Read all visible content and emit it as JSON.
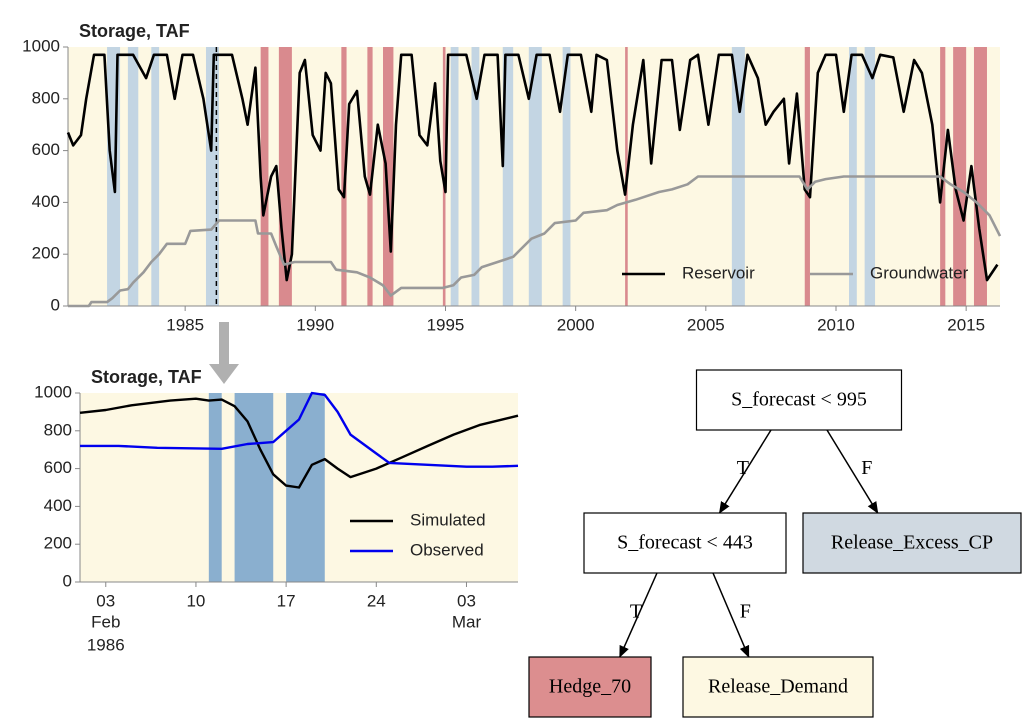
{
  "chart_data": [
    {
      "type": "line",
      "title": "Storage, TAF",
      "xlim": [
        1980.5,
        2016.3
      ],
      "xticks": [
        1985,
        1990,
        1995,
        2000,
        2005,
        2010,
        2015
      ],
      "ylim": [
        0,
        1000
      ],
      "yticks": [
        0,
        200,
        400,
        600,
        800,
        1000
      ],
      "legend": "lower right",
      "background": "#fdf8e3",
      "marker_x": 1986.2,
      "regions": [
        {
          "x": [
            1982.0,
            1982.5
          ],
          "color": "#c3d5e3"
        },
        {
          "x": [
            1982.8,
            1983.2
          ],
          "color": "#c3d5e3"
        },
        {
          "x": [
            1983.7,
            1984.0
          ],
          "color": "#c3d5e3"
        },
        {
          "x": [
            1985.8,
            1986.3
          ],
          "color": "#c3d5e3"
        },
        {
          "x": [
            1987.9,
            1988.2
          ],
          "color": "#d98a8e"
        },
        {
          "x": [
            1988.6,
            1989.1
          ],
          "color": "#d98a8e"
        },
        {
          "x": [
            1991.0,
            1991.2
          ],
          "color": "#d98a8e"
        },
        {
          "x": [
            1992.0,
            1992.2
          ],
          "color": "#d98a8e"
        },
        {
          "x": [
            1992.6,
            1993.0
          ],
          "color": "#d98a8e"
        },
        {
          "x": [
            1994.9,
            1995.0
          ],
          "color": "#d98a8e"
        },
        {
          "x": [
            1995.2,
            1995.5
          ],
          "color": "#c3d5e3"
        },
        {
          "x": [
            1996.0,
            1996.3
          ],
          "color": "#c3d5e3"
        },
        {
          "x": [
            1997.2,
            1997.6
          ],
          "color": "#c3d5e3"
        },
        {
          "x": [
            1998.2,
            1998.7
          ],
          "color": "#c3d5e3"
        },
        {
          "x": [
            1999.5,
            1999.8
          ],
          "color": "#c3d5e3"
        },
        {
          "x": [
            2001.9,
            2002.0
          ],
          "color": "#d98a8e"
        },
        {
          "x": [
            2006.0,
            2006.5
          ],
          "color": "#c3d5e3"
        },
        {
          "x": [
            2008.8,
            2009.0
          ],
          "color": "#d98a8e"
        },
        {
          "x": [
            2010.5,
            2010.8
          ],
          "color": "#c3d5e3"
        },
        {
          "x": [
            2011.1,
            2011.5
          ],
          "color": "#c3d5e3"
        },
        {
          "x": [
            2014.0,
            2014.2
          ],
          "color": "#d98a8e"
        },
        {
          "x": [
            2014.5,
            2015.0
          ],
          "color": "#d98a8e"
        },
        {
          "x": [
            2015.3,
            2015.8
          ],
          "color": "#d98a8e"
        }
      ],
      "series": [
        {
          "name": "Reservoir",
          "color": "#000000",
          "width": 2.6,
          "x": [
            1980.5,
            1980.7,
            1981.0,
            1981.2,
            1981.5,
            1981.7,
            1981.9,
            1982.1,
            1982.3,
            1982.4,
            1983.0,
            1983.5,
            1983.8,
            1984.3,
            1984.6,
            1984.9,
            1985.3,
            1985.7,
            1986.0,
            1986.1,
            1986.8,
            1987.2,
            1987.4,
            1987.7,
            1987.9,
            1988.0,
            1988.3,
            1988.5,
            1988.7,
            1988.9,
            1989.1,
            1989.4,
            1989.6,
            1989.9,
            1990.2,
            1990.4,
            1990.6,
            1990.9,
            1991.1,
            1991.3,
            1991.6,
            1991.9,
            1992.1,
            1992.4,
            1992.7,
            1992.9,
            1993.1,
            1993.3,
            1993.7,
            1994.0,
            1994.3,
            1994.6,
            1994.8,
            1995.0,
            1995.1,
            1995.8,
            1996.2,
            1996.5,
            1997.0,
            1997.2,
            1997.3,
            1997.8,
            1998.2,
            1998.5,
            1999.0,
            1999.4,
            1999.7,
            2000.2,
            2000.6,
            2000.8,
            2001.2,
            2001.6,
            2001.9,
            2002.2,
            2002.6,
            2002.9,
            2003.3,
            2003.7,
            2004.0,
            2004.4,
            2004.7,
            2005.1,
            2005.5,
            2006.0,
            2006.3,
            2006.6,
            2007.0,
            2007.3,
            2007.6,
            2008.0,
            2008.2,
            2008.5,
            2008.8,
            2009.0,
            2009.3,
            2009.6,
            2010.0,
            2010.3,
            2010.6,
            2011.0,
            2011.4,
            2011.7,
            2012.2,
            2012.6,
            2013.0,
            2013.3,
            2013.7,
            2014.0,
            2014.3,
            2014.6,
            2014.9,
            2015.2,
            2015.5,
            2015.8,
            2016.2
          ],
          "values": [
            670,
            620,
            660,
            800,
            970,
            970,
            970,
            600,
            440,
            970,
            970,
            880,
            970,
            970,
            800,
            970,
            970,
            800,
            600,
            970,
            970,
            800,
            700,
            920,
            500,
            350,
            500,
            540,
            300,
            100,
            200,
            900,
            950,
            660,
            600,
            900,
            860,
            450,
            420,
            780,
            830,
            500,
            430,
            700,
            550,
            210,
            700,
            970,
            970,
            660,
            620,
            860,
            560,
            440,
            970,
            970,
            800,
            970,
            970,
            540,
            970,
            970,
            800,
            970,
            970,
            750,
            970,
            970,
            750,
            970,
            950,
            600,
            430,
            700,
            950,
            550,
            950,
            950,
            680,
            950,
            970,
            700,
            970,
            970,
            750,
            970,
            880,
            700,
            750,
            800,
            550,
            820,
            450,
            420,
            900,
            970,
            970,
            750,
            970,
            970,
            880,
            970,
            960,
            750,
            950,
            900,
            700,
            400,
            680,
            450,
            330,
            540,
            300,
            100,
            160
          ]
        },
        {
          "name": "Groundwater",
          "color": "#999999",
          "width": 2.6,
          "x": [
            1980.5,
            1981.3,
            1981.4,
            1982.0,
            1982.2,
            1982.5,
            1982.8,
            1983.0,
            1983.4,
            1983.7,
            1984.0,
            1984.3,
            1985.0,
            1985.2,
            1986.0,
            1986.3,
            1987.7,
            1987.8,
            1988.3,
            1988.5,
            1988.8,
            1989.2,
            1990.6,
            1990.8,
            1991.6,
            1992.1,
            1992.6,
            1992.9,
            1993.3,
            1994.9,
            1995.3,
            1995.6,
            1996.1,
            1996.4,
            1997.0,
            1997.6,
            1997.9,
            1998.3,
            1998.8,
            1999.2,
            2000.0,
            2000.3,
            2001.2,
            2001.6,
            2002.3,
            2003.2,
            2003.7,
            2004.3,
            2004.7,
            2008.6,
            2008.9,
            2009.2,
            2009.6,
            2010.3,
            2014.0,
            2014.4,
            2014.9,
            2015.4,
            2015.9,
            2016.3
          ],
          "values": [
            0,
            0,
            15,
            15,
            30,
            60,
            65,
            90,
            130,
            170,
            200,
            240,
            240,
            290,
            295,
            330,
            330,
            280,
            280,
            230,
            160,
            170,
            170,
            140,
            130,
            110,
            80,
            40,
            70,
            70,
            80,
            110,
            120,
            150,
            170,
            190,
            220,
            260,
            280,
            320,
            330,
            360,
            370,
            390,
            410,
            440,
            450,
            470,
            500,
            500,
            450,
            480,
            490,
            500,
            500,
            470,
            440,
            400,
            350,
            270
          ]
        }
      ]
    },
    {
      "type": "line",
      "title": "Storage, TAF",
      "xlim": [
        "1986-02-01",
        "1986-03-07"
      ],
      "xticks": [
        {
          "value": "1986-02-03",
          "label": "03"
        },
        {
          "value": "1986-02-10",
          "label": "10"
        },
        {
          "value": "1986-02-17",
          "label": "17"
        },
        {
          "value": "1986-02-24",
          "label": "24"
        },
        {
          "value": "1986-03-03",
          "label": "03"
        }
      ],
      "xtick_sublabels": [
        {
          "value": "1986-02-03",
          "label": "Feb"
        },
        {
          "value": "1986-03-03",
          "label": "Mar"
        }
      ],
      "year_label": "1986",
      "ylim": [
        0,
        1000
      ],
      "yticks": [
        0,
        200,
        400,
        600,
        800,
        1000
      ],
      "legend": "center right",
      "background": "#fdf8e3",
      "regions": [
        {
          "x": [
            "1986-02-11",
            "1986-02-12"
          ],
          "color": "#8aafcf"
        },
        {
          "x": [
            "1986-02-13",
            "1986-02-16"
          ],
          "color": "#8aafcf"
        },
        {
          "x": [
            "1986-02-17",
            "1986-02-20"
          ],
          "color": "#8aafcf"
        }
      ],
      "series": [
        {
          "name": "Simulated",
          "color": "#000000",
          "width": 2.4,
          "x": [
            "1986-02-01",
            "1986-02-03",
            "1986-02-05",
            "1986-02-08",
            "1986-02-10",
            "1986-02-11",
            "1986-02-12",
            "1986-02-13",
            "1986-02-14",
            "1986-02-15",
            "1986-02-16",
            "1986-02-17",
            "1986-02-18",
            "1986-02-19",
            "1986-02-20",
            "1986-02-21",
            "1986-02-22",
            "1986-02-24",
            "1986-02-26",
            "1986-02-28",
            "1986-03-02",
            "1986-03-04",
            "1986-03-07"
          ],
          "values": [
            895,
            910,
            935,
            960,
            970,
            960,
            965,
            930,
            850,
            700,
            570,
            510,
            500,
            620,
            650,
            600,
            555,
            600,
            660,
            720,
            780,
            830,
            880
          ]
        },
        {
          "name": "Observed",
          "color": "#0000ee",
          "width": 2.4,
          "x": [
            "1986-02-01",
            "1986-02-04",
            "1986-02-07",
            "1986-02-12",
            "1986-02-14",
            "1986-02-16",
            "1986-02-17",
            "1986-02-18",
            "1986-02-19",
            "1986-02-20",
            "1986-02-21",
            "1986-02-22",
            "1986-02-24",
            "1986-02-25",
            "1986-02-28",
            "1986-03-03",
            "1986-03-05",
            "1986-03-07"
          ],
          "values": [
            720,
            720,
            710,
            705,
            730,
            740,
            800,
            860,
            1000,
            990,
            900,
            780,
            680,
            630,
            620,
            610,
            610,
            615
          ]
        }
      ]
    }
  ],
  "tree": {
    "nodes": [
      {
        "label": "S_forecast < 995",
        "color": "#ffffff"
      },
      {
        "label": "S_forecast < 443",
        "color": "#ffffff"
      },
      {
        "label": "Release_Excess_CP",
        "color": "#d0d9e1"
      },
      {
        "label": "Hedge_70",
        "color": "#dc8e8f"
      },
      {
        "label": "Release_Demand",
        "color": "#fdf8e2"
      }
    ],
    "edges": [
      {
        "from": 0,
        "to": 1,
        "label": "T"
      },
      {
        "from": 0,
        "to": 2,
        "label": "F"
      },
      {
        "from": 1,
        "to": 3,
        "label": "T"
      },
      {
        "from": 1,
        "to": 4,
        "label": "F"
      }
    ]
  }
}
